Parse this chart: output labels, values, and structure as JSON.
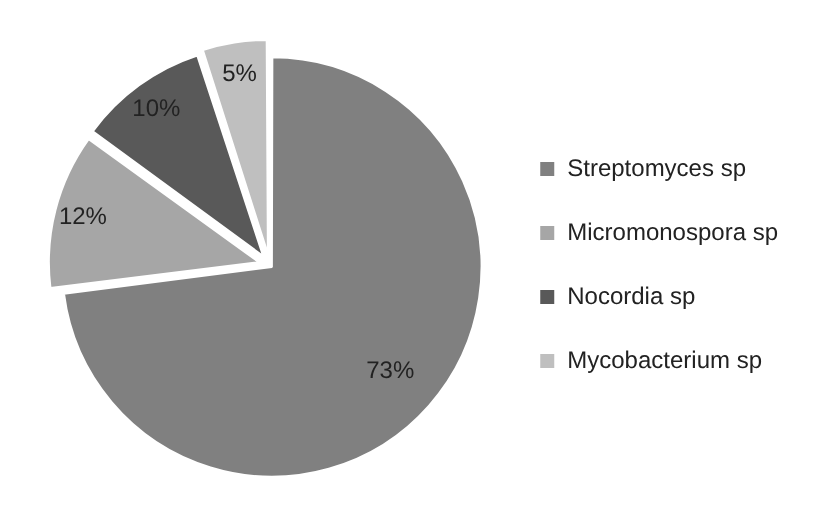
{
  "chart_data": {
    "type": "pie",
    "categories": [
      "Streptomyces sp",
      "Micromonospora sp",
      "Nocordia sp",
      "Mycobacterium sp"
    ],
    "values": [
      73,
      12,
      10,
      5
    ],
    "colors": [
      "#808080",
      "#a6a6a6",
      "#595959",
      "#bfbfbf"
    ],
    "value_labels": [
      "73%",
      "12%",
      "10%",
      "5%"
    ],
    "legend": "right"
  }
}
